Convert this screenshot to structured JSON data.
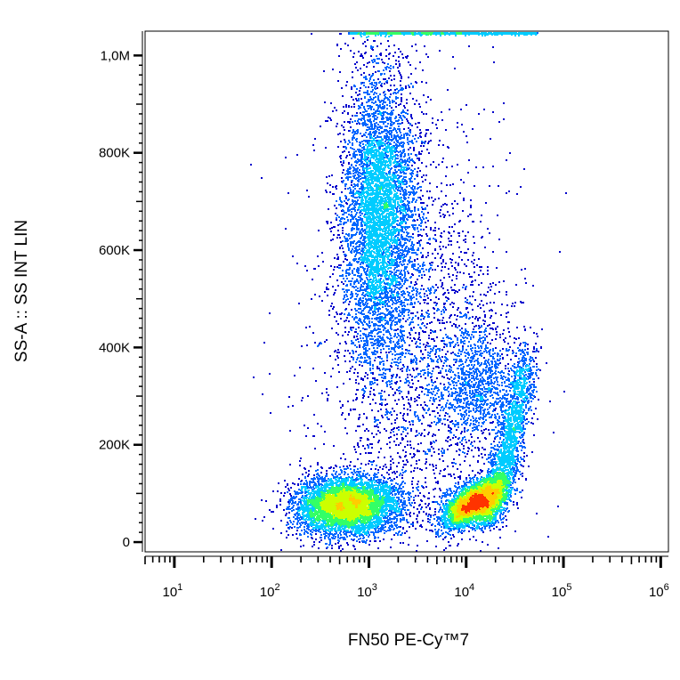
{
  "chart_data": {
    "type": "scatter",
    "xlabel": "FN50 PE-Cy™7",
    "ylabel": "SS-A :: SS INT LIN",
    "x_scale": "log",
    "xlim": [
      5,
      1200000
    ],
    "ylim": [
      -20000,
      1050000
    ],
    "x_ticks": [
      {
        "value": 10,
        "base": "10",
        "exp": "1"
      },
      {
        "value": 100,
        "base": "10",
        "exp": "2"
      },
      {
        "value": 1000,
        "base": "10",
        "exp": "3"
      },
      {
        "value": 10000,
        "base": "10",
        "exp": "4"
      },
      {
        "value": 100000,
        "base": "10",
        "exp": "5"
      },
      {
        "value": 1000000,
        "base": "10",
        "exp": "6"
      }
    ],
    "y_ticks": [
      {
        "value": 0,
        "label": "0"
      },
      {
        "value": 200000,
        "label": "200K"
      },
      {
        "value": 400000,
        "label": "400K"
      },
      {
        "value": 600000,
        "label": "600K"
      },
      {
        "value": 800000,
        "label": "800K"
      },
      {
        "value": 1000000,
        "label": "1,0M"
      }
    ],
    "grid": false,
    "legend": "none",
    "color_scale": [
      "#0000cc",
      "#0066ff",
      "#00ccff",
      "#33ff66",
      "#ccff00",
      "#ffcc00",
      "#ff3300"
    ],
    "populations": [
      {
        "x": 600,
        "y": 75000,
        "count": 5200
      },
      {
        "x": 12000,
        "y": 80000,
        "count": 3600
      },
      {
        "x": 1300,
        "y": 680000,
        "count": 5200
      },
      {
        "x": 13000,
        "y": 330000,
        "count": 1100
      },
      {
        "x": 3000,
        "y": 400000,
        "count": 2400
      }
    ]
  }
}
